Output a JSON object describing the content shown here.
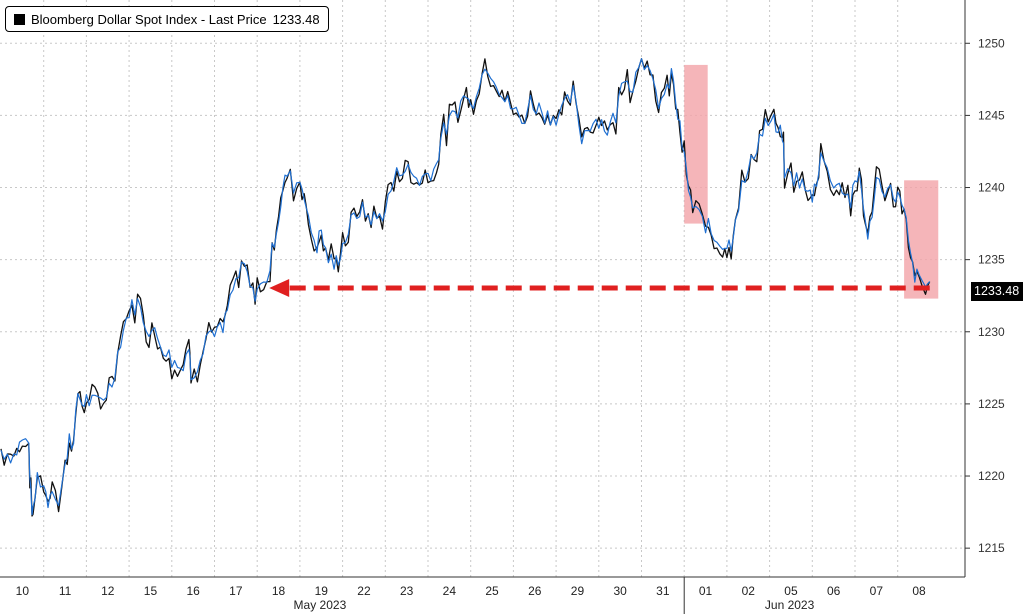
{
  "chart_data": {
    "type": "line",
    "legend": {
      "label": "Bloomberg Dollar Spot Index - Last Price",
      "last_value": "1233.48"
    },
    "last_price_label": "1233.48",
    "y_axis": {
      "ticks": [
        1215,
        1220,
        1225,
        1230,
        1235,
        1240,
        1245,
        1250
      ],
      "ylim": [
        1213,
        1253
      ],
      "position": "right"
    },
    "x_axis": {
      "labels": [
        "10",
        "11",
        "12",
        "15",
        "16",
        "17",
        "18",
        "19",
        "22",
        "23",
        "24",
        "25",
        "26",
        "29",
        "30",
        "31",
        "01",
        "02",
        "05",
        "06",
        "07",
        "08"
      ],
      "months": [
        "May 2023",
        "Jun 2023"
      ]
    },
    "series": [
      {
        "color": "#1f6fd1",
        "values": [
          [
            0.0,
            1221.8
          ],
          [
            0.3,
            1221.4
          ],
          [
            0.5,
            1222.5
          ],
          [
            0.65,
            1222.2
          ],
          [
            0.7,
            1218.5
          ],
          [
            0.75,
            1217.2
          ],
          [
            0.85,
            1220.0
          ],
          [
            1.0,
            1219.4
          ],
          [
            1.1,
            1218.3
          ],
          [
            1.2,
            1219.5
          ],
          [
            1.35,
            1218.0
          ],
          [
            1.5,
            1220.5
          ],
          [
            1.6,
            1223.0
          ],
          [
            1.7,
            1222.0
          ],
          [
            1.8,
            1225.8
          ],
          [
            1.9,
            1225.0
          ],
          [
            2.0,
            1225.3
          ],
          [
            2.2,
            1225.0
          ],
          [
            2.4,
            1225.5
          ],
          [
            2.6,
            1226.5
          ],
          [
            2.8,
            1229.5
          ],
          [
            3.0,
            1231.5
          ],
          [
            3.2,
            1232.0
          ],
          [
            3.4,
            1230.5
          ],
          [
            3.6,
            1229.8
          ],
          [
            3.8,
            1229.0
          ],
          [
            4.0,
            1228.0
          ],
          [
            4.2,
            1227.5
          ],
          [
            4.4,
            1229.0
          ],
          [
            4.45,
            1227.0
          ],
          [
            4.6,
            1227.8
          ],
          [
            4.8,
            1229.8
          ],
          [
            5.0,
            1230.2
          ],
          [
            5.2,
            1230.0
          ],
          [
            5.3,
            1231.5
          ],
          [
            5.5,
            1233.5
          ],
          [
            5.7,
            1234.5
          ],
          [
            5.9,
            1232.5
          ],
          [
            6.0,
            1233.0
          ],
          [
            6.15,
            1233.2
          ],
          [
            6.3,
            1234.5
          ],
          [
            6.4,
            1236.5
          ],
          [
            6.5,
            1238.0
          ],
          [
            6.6,
            1239.8
          ],
          [
            6.7,
            1241.0
          ],
          [
            6.85,
            1240.2
          ],
          [
            7.0,
            1240.5
          ],
          [
            7.1,
            1239.8
          ],
          [
            7.2,
            1237.5
          ],
          [
            7.4,
            1236.0
          ],
          [
            7.5,
            1237.0
          ],
          [
            7.6,
            1235.5
          ],
          [
            7.8,
            1234.5
          ],
          [
            7.9,
            1235.2
          ],
          [
            8.0,
            1236.0
          ],
          [
            8.2,
            1237.5
          ],
          [
            8.4,
            1238.5
          ],
          [
            8.6,
            1238.0
          ],
          [
            8.8,
            1237.8
          ],
          [
            9.0,
            1238.5
          ],
          [
            9.2,
            1240.5
          ],
          [
            9.4,
            1241.5
          ],
          [
            9.6,
            1241.0
          ],
          [
            9.8,
            1240.5
          ],
          [
            10.0,
            1241.0
          ],
          [
            10.2,
            1241.5
          ],
          [
            10.3,
            1243.5
          ],
          [
            10.5,
            1244.5
          ],
          [
            10.7,
            1245.5
          ],
          [
            10.9,
            1246.5
          ],
          [
            11.0,
            1245.5
          ],
          [
            11.2,
            1247.5
          ],
          [
            11.4,
            1248.5
          ],
          [
            11.6,
            1247.5
          ],
          [
            11.8,
            1246.0
          ],
          [
            12.0,
            1245.5
          ],
          [
            12.2,
            1244.5
          ],
          [
            12.4,
            1246.0
          ],
          [
            12.6,
            1245.5
          ],
          [
            12.8,
            1245.0
          ],
          [
            13.0,
            1245.0
          ],
          [
            13.2,
            1245.5
          ],
          [
            13.4,
            1246.5
          ],
          [
            13.6,
            1243.5
          ],
          [
            13.8,
            1244.5
          ],
          [
            14.0,
            1244.8
          ],
          [
            14.2,
            1244.0
          ],
          [
            14.4,
            1245.0
          ],
          [
            14.6,
            1248.0
          ],
          [
            14.8,
            1247.0
          ],
          [
            15.0,
            1249.5
          ],
          [
            15.2,
            1247.5
          ],
          [
            15.4,
            1246.0
          ],
          [
            15.6,
            1246.5
          ],
          [
            15.7,
            1248.0
          ],
          [
            15.8,
            1246.0
          ],
          [
            15.9,
            1244.0
          ],
          [
            16.0,
            1242.0
          ],
          [
            16.1,
            1240.0
          ],
          [
            16.2,
            1238.5
          ],
          [
            16.35,
            1238.0
          ],
          [
            16.5,
            1237.5
          ],
          [
            16.7,
            1236.5
          ],
          [
            16.9,
            1236.2
          ],
          [
            17.0,
            1236.0
          ],
          [
            17.1,
            1236.2
          ],
          [
            17.2,
            1238.0
          ],
          [
            17.35,
            1240.0
          ],
          [
            17.5,
            1241.0
          ],
          [
            17.7,
            1243.0
          ],
          [
            17.9,
            1244.5
          ],
          [
            18.1,
            1244.5
          ],
          [
            18.2,
            1243.5
          ],
          [
            18.3,
            1243.8
          ],
          [
            18.35,
            1241.0
          ],
          [
            18.5,
            1240.8
          ],
          [
            18.7,
            1240.5
          ],
          [
            18.9,
            1239.5
          ],
          [
            19.0,
            1239.5
          ],
          [
            19.1,
            1240.5
          ],
          [
            19.2,
            1242.5
          ],
          [
            19.35,
            1241.0
          ],
          [
            19.5,
            1240.5
          ],
          [
            19.7,
            1240.0
          ],
          [
            19.9,
            1239.0
          ],
          [
            20.0,
            1240.0
          ],
          [
            20.1,
            1241.0
          ],
          [
            20.2,
            1239.0
          ],
          [
            20.3,
            1236.0
          ],
          [
            20.4,
            1238.5
          ],
          [
            20.5,
            1240.5
          ],
          [
            20.7,
            1240.0
          ],
          [
            20.9,
            1239.5
          ],
          [
            21.0,
            1239.5
          ],
          [
            21.1,
            1238.5
          ],
          [
            21.2,
            1237.5
          ],
          [
            21.3,
            1235.0
          ],
          [
            21.4,
            1234.0
          ],
          [
            21.5,
            1233.5
          ],
          [
            21.65,
            1233.2
          ],
          [
            21.75,
            1233.48
          ]
        ]
      }
    ]
  },
  "annotations": {
    "arrow": {
      "from_day": 21.75,
      "to_day": 6.0,
      "level": 1233.0,
      "color": "#e02020"
    },
    "highlights": [
      {
        "day_start": 16.0,
        "day_end": 16.55,
        "y_top": 1248.5,
        "y_bottom": 1237.5,
        "color": "#f2a3a8"
      },
      {
        "day_start": 21.15,
        "day_end": 21.95,
        "y_top": 1240.5,
        "y_bottom": 1232.3,
        "color": "#f2a3a8"
      }
    ]
  }
}
